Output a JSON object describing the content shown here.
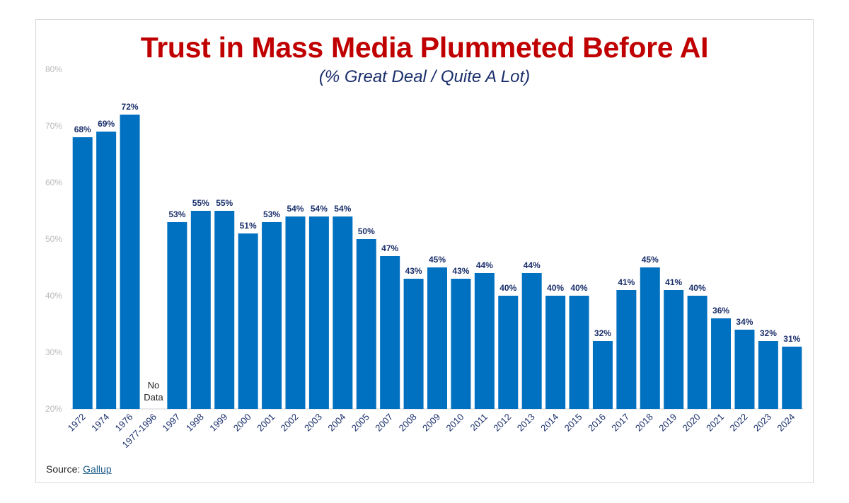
{
  "chart_data": {
    "type": "bar",
    "title": "Trust in Mass Media Plummeted Before AI",
    "subtitle": "(% Great Deal / Quite A Lot)",
    "xlabel": "",
    "ylabel": "",
    "ylim": [
      20,
      80
    ],
    "yticks": [
      20,
      30,
      40,
      50,
      60,
      70,
      80
    ],
    "ytick_labels": [
      "20%",
      "30%",
      "40%",
      "50%",
      "60%",
      "70%",
      "80%"
    ],
    "grid": false,
    "legend": "none",
    "categories": [
      "1972",
      "1974",
      "1976",
      "1977-1996",
      "1997",
      "1998",
      "1999",
      "2000",
      "2001",
      "2002",
      "2003",
      "2004",
      "2005",
      "2007",
      "2008",
      "2009",
      "2010",
      "2011",
      "2012",
      "2013",
      "2014",
      "2015",
      "2016",
      "2017",
      "2018",
      "2019",
      "2020",
      "2021",
      "2022",
      "2023",
      "2024"
    ],
    "values": [
      68,
      69,
      72,
      null,
      53,
      55,
      55,
      51,
      53,
      54,
      54,
      54,
      50,
      47,
      43,
      45,
      43,
      44,
      40,
      44,
      40,
      40,
      32,
      41,
      45,
      41,
      40,
      36,
      34,
      32,
      31
    ],
    "data_labels": [
      "68%",
      "69%",
      "72%",
      "",
      "53%",
      "55%",
      "55%",
      "51%",
      "53%",
      "54%",
      "54%",
      "54%",
      "50%",
      "47%",
      "43%",
      "45%",
      "43%",
      "44%",
      "40%",
      "44%",
      "40%",
      "40%",
      "32%",
      "41%",
      "45%",
      "41%",
      "40%",
      "36%",
      "34%",
      "32%",
      "31%"
    ],
    "no_data_text": [
      "No",
      "Data"
    ],
    "bar_color": "#0070c0"
  },
  "source": {
    "label": "Source: ",
    "link_text": "Gallup"
  }
}
